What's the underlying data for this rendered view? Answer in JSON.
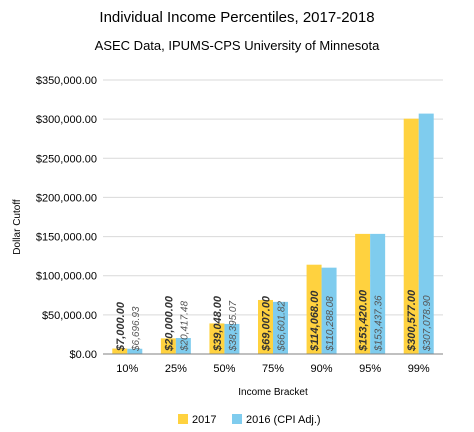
{
  "colors": {
    "series_2017": "#FFD23F",
    "series_2016": "#7FCCEE",
    "grid": "#d9d9d9",
    "axis": "#808080"
  },
  "chart_data": {
    "type": "bar",
    "title": "Individual Income Percentiles, 2017-2018",
    "subtitle": "ASEC Data, IPUMS-CPS University of Minnesota",
    "xlabel": "Income Bracket",
    "ylabel": "Dollar Cutoff",
    "categories": [
      "10%",
      "25%",
      "50%",
      "75%",
      "90%",
      "95%",
      "99%"
    ],
    "ylim": [
      0,
      350000
    ],
    "y_ticks": [
      0,
      50000,
      100000,
      150000,
      200000,
      250000,
      300000,
      350000
    ],
    "y_tick_labels": [
      "$0.00",
      "$50,000.00",
      "$100,000.00",
      "$150,000.00",
      "$200,000.00",
      "$250,000.00",
      "$300,000.00",
      "$350,000.00"
    ],
    "grid": true,
    "legend_position": "bottom",
    "series": [
      {
        "name": "2017",
        "values": [
          7000,
          20000,
          39048,
          69007,
          114068,
          153420,
          300577
        ],
        "labels": [
          "$7,000.00",
          "$20,000.00",
          "$39,048.00",
          "$69,007.00",
          "$114,068.00",
          "$153,420.00",
          "$300,577.00"
        ]
      },
      {
        "name": "2016 (CPI Adj.)",
        "values": [
          6696.93,
          20417.48,
          38395.07,
          66601.82,
          110288.08,
          153437.36,
          307078.9
        ],
        "labels": [
          "$6,696.93",
          "$20,417.48",
          "$38,395.07",
          "$66,601.82",
          "$110,288.08",
          "$153,437.36",
          "$307,078.90"
        ]
      }
    ]
  }
}
